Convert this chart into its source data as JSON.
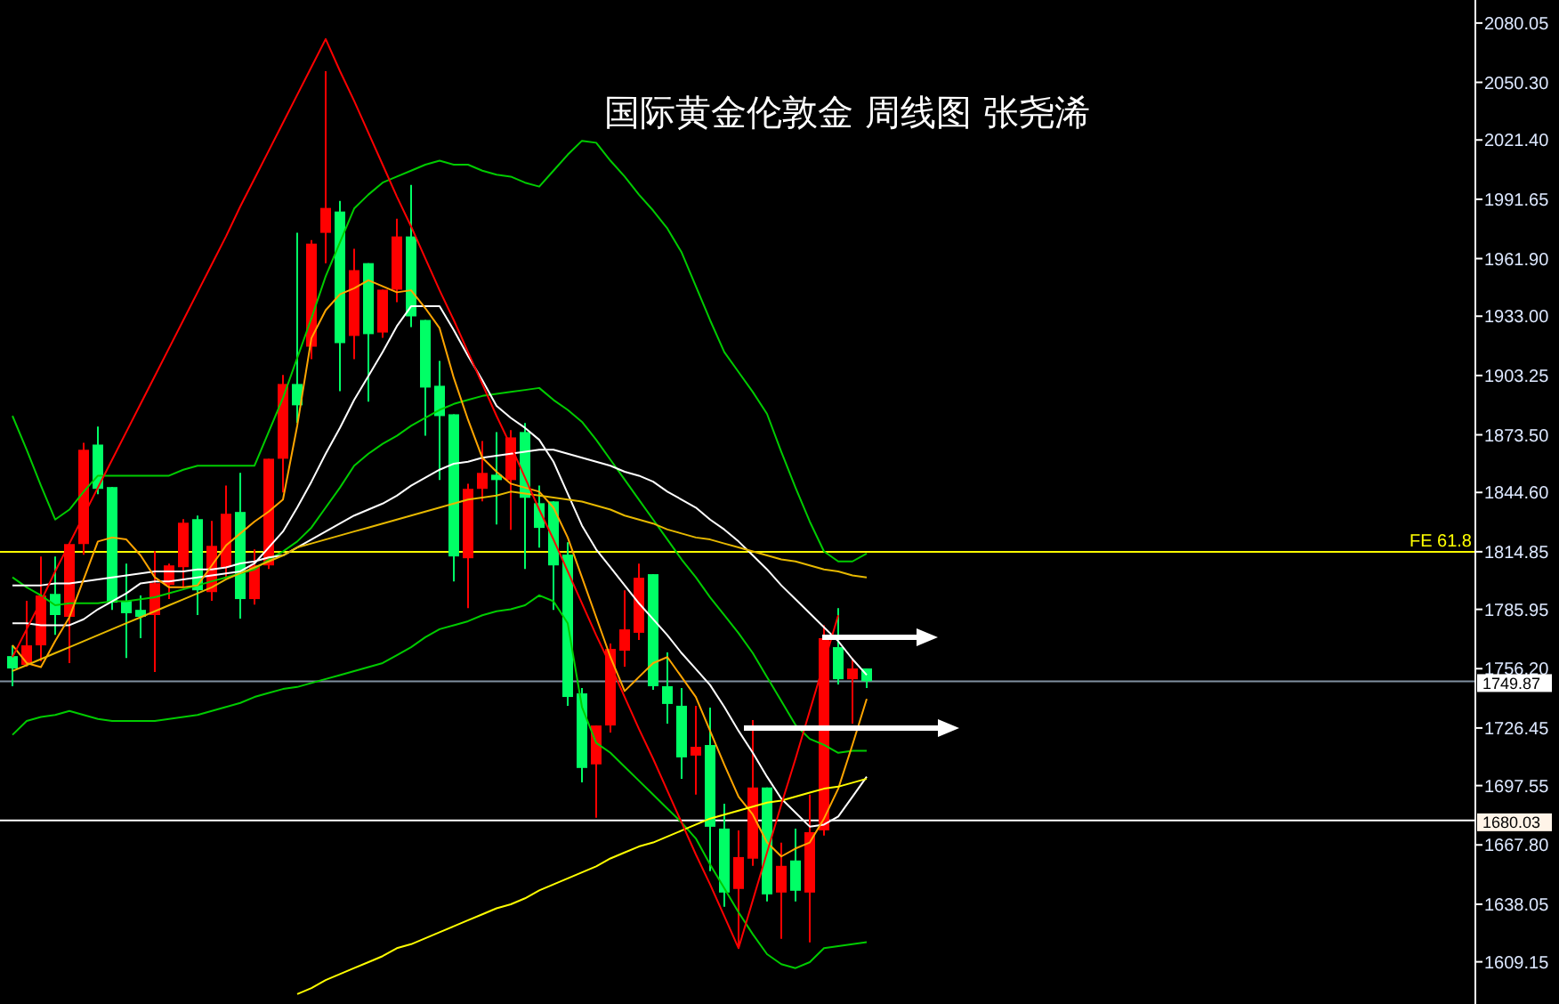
{
  "chart_data": {
    "type": "candlestick",
    "title": "国际黄金伦敦金  周线图  张尧浠",
    "categories": [
      null,
      null,
      null,
      null,
      null,
      null,
      null,
      null,
      null,
      null,
      null,
      null,
      null,
      null,
      null,
      null,
      null,
      null,
      null,
      null,
      null,
      null,
      null,
      null,
      null,
      null,
      null,
      null,
      null,
      null,
      null,
      null,
      null,
      null,
      null,
      null,
      null,
      null,
      null,
      null,
      null,
      null,
      null,
      null,
      null,
      null,
      null,
      null,
      null,
      null,
      null,
      null,
      null,
      null,
      null,
      null,
      null,
      null,
      null,
      null,
      null
    ],
    "ohlc": [
      [
        1762.5,
        1767.9,
        1747.4,
        1756.3
      ],
      [
        1758.1,
        1790.2,
        1757.2,
        1767.9
      ],
      [
        1767.9,
        1812.5,
        1759.9,
        1792.9
      ],
      [
        1793.7,
        1812.5,
        1773.2,
        1783.1
      ],
      [
        1782.2,
        1818.7,
        1759.0,
        1818.7
      ],
      [
        1818.7,
        1869.5,
        1813.4,
        1866.0
      ],
      [
        1868.6,
        1877.6,
        1843.7,
        1846.4
      ],
      [
        1847.3,
        1847.3,
        1785.7,
        1789.3
      ],
      [
        1790.2,
        1808.9,
        1761.6,
        1784.0
      ],
      [
        1785.7,
        1792.9,
        1771.5,
        1782.2
      ],
      [
        1783.1,
        1815.1,
        1754.5,
        1799.1
      ],
      [
        1798.2,
        1808.9,
        1791.1,
        1808.0
      ],
      [
        1807.1,
        1831.2,
        1797.3,
        1829.4
      ],
      [
        1831.2,
        1833.0,
        1783.1,
        1795.5
      ],
      [
        1794.6,
        1830.3,
        1790.2,
        1817.8
      ],
      [
        1807.1,
        1848.1,
        1801.8,
        1833.9
      ],
      [
        1834.8,
        1854.4,
        1781.3,
        1791.1
      ],
      [
        1791.1,
        1816.0,
        1788.4,
        1808.0
      ],
      [
        1808.0,
        1861.5,
        1806.2,
        1861.5
      ],
      [
        1861.5,
        1903.5,
        1844.6,
        1899.0
      ],
      [
        1899.0,
        1974.8,
        1879.4,
        1888.3
      ],
      [
        1917.7,
        1971.2,
        1911.5,
        1969.4
      ],
      [
        1974.8,
        2055.9,
        1959.6,
        1987.3
      ],
      [
        1985.5,
        1990.8,
        1895.4,
        1919.5
      ],
      [
        1923.1,
        1966.8,
        1911.5,
        1956.1
      ],
      [
        1959.6,
        1959.6,
        1890.1,
        1924.0
      ],
      [
        1924.8,
        1946.3,
        1922.2,
        1946.3
      ],
      [
        1946.3,
        1981.9,
        1940.0,
        1973.0
      ],
      [
        1973.0,
        1998.9,
        1927.5,
        1932.9
      ],
      [
        1931.1,
        1931.1,
        1873.1,
        1897.2
      ],
      [
        1898.1,
        1910.6,
        1850.8,
        1882.9
      ],
      [
        1883.8,
        1883.8,
        1800.0,
        1812.5
      ],
      [
        1811.6,
        1849.0,
        1786.6,
        1846.4
      ],
      [
        1846.4,
        1870.4,
        1840.1,
        1854.4
      ],
      [
        1853.5,
        1874.9,
        1828.5,
        1850.8
      ],
      [
        1850.8,
        1875.8,
        1825.9,
        1872.2
      ],
      [
        1874.9,
        1879.4,
        1806.2,
        1841.9
      ],
      [
        1839.2,
        1848.1,
        1816.9,
        1826.8
      ],
      [
        1840.1,
        1840.1,
        1785.7,
        1808.0
      ],
      [
        1813.4,
        1819.6,
        1737.6,
        1742.0
      ],
      [
        1743.8,
        1746.5,
        1699.2,
        1706.4
      ],
      [
        1708.2,
        1727.7,
        1681.4,
        1727.7
      ],
      [
        1727.7,
        1768.8,
        1724.2,
        1766.1
      ],
      [
        1765.2,
        1795.5,
        1757.2,
        1775.9
      ],
      [
        1774.2,
        1808.9,
        1770.6,
        1801.8
      ],
      [
        1803.6,
        1803.6,
        1745.6,
        1747.4
      ],
      [
        1747.4,
        1764.3,
        1728.6,
        1738.5
      ],
      [
        1737.6,
        1746.5,
        1701.0,
        1711.7
      ],
      [
        1712.6,
        1737.6,
        1693.0,
        1717.0
      ],
      [
        1717.9,
        1736.7,
        1654.6,
        1676.9
      ],
      [
        1676.0,
        1688.5,
        1636.8,
        1643.9
      ],
      [
        1645.7,
        1675.1,
        1616.3,
        1661.7
      ],
      [
        1660.9,
        1730.4,
        1657.3,
        1696.6
      ],
      [
        1696.6,
        1696.6,
        1639.5,
        1643.0
      ],
      [
        1643.9,
        1668.9,
        1620.7,
        1657.3
      ],
      [
        1660.0,
        1676.0,
        1639.5,
        1644.8
      ],
      [
        1643.9,
        1693.0,
        1618.9,
        1674.2
      ],
      [
        1675.1,
        1778.0,
        1672.5,
        1771.5
      ],
      [
        1767.0,
        1786.6,
        1748.3,
        1750.9
      ],
      [
        1750.9,
        1761.6,
        1728.6,
        1756.3
      ],
      [
        1756.3,
        1756.3,
        1746.5,
        1749.9
      ]
    ],
    "colors": [
      "#00ff66",
      "#ff0000",
      "#ff0000",
      "#00ff66",
      "#ff0000",
      "#ff0000",
      "#00ff66",
      "#00ff66",
      "#00ff66",
      "#00ff66",
      "#ff0000",
      "#ff0000",
      "#ff0000",
      "#00ff66",
      "#ff0000",
      "#ff0000",
      "#00ff66",
      "#ff0000",
      "#ff0000",
      "#ff0000",
      "#00ff66",
      "#ff0000",
      "#ff0000",
      "#00ff66",
      "#ff0000",
      "#00ff66",
      "#ff0000",
      "#ff0000",
      "#00ff66",
      "#00ff66",
      "#00ff66",
      "#00ff66",
      "#ff0000",
      "#ff0000",
      "#00ff66",
      "#ff0000",
      "#00ff66",
      "#00ff66",
      "#00ff66",
      "#00ff66",
      "#00ff66",
      "#ff0000",
      "#ff0000",
      "#ff0000",
      "#ff0000",
      "#00ff66",
      "#00ff66",
      "#00ff66",
      "#ff0000",
      "#00ff66",
      "#00ff66",
      "#ff0000",
      "#ff0000",
      "#00ff66",
      "#ff0000",
      "#00ff66",
      "#ff0000",
      "#ff0000",
      "#00ff66",
      "#ff0000",
      "#00ff66"
    ],
    "series": [
      {
        "type": "line",
        "color": "#00cc00",
        "values": [
          1883,
          1866,
          1848,
          1831,
          1836,
          1845,
          1853,
          1853,
          1853,
          1853,
          1853,
          1853,
          1856,
          1858,
          1858,
          1858,
          1858,
          1858,
          1875,
          1892,
          1912,
          1932,
          1953,
          1970,
          1987,
          1994,
          2000,
          2003,
          2006,
          2009,
          2011,
          2009,
          2009,
          2006,
          2004,
          2003,
          2000,
          1998,
          2006,
          2014,
          2021,
          2020,
          2011,
          2003,
          1994,
          1986,
          1977,
          1965,
          1948,
          1931,
          1915,
          1905,
          1895,
          1884,
          1865,
          1847,
          1830,
          1815,
          1810,
          1810,
          1814
        ]
      },
      {
        "type": "line",
        "color": "#00cc00",
        "values": [
          1802,
          1797,
          1793,
          1788,
          1789,
          1789,
          1789,
          1790,
          1790,
          1791,
          1792,
          1794,
          1796,
          1798,
          1800,
          1802,
          1804,
          1806,
          1811,
          1815,
          1820,
          1827,
          1837,
          1847,
          1858,
          1864,
          1869,
          1873,
          1878,
          1882,
          1886,
          1889,
          1891,
          1893,
          1894,
          1895,
          1896,
          1897,
          1891,
          1886,
          1880,
          1871,
          1861,
          1851,
          1841,
          1831,
          1821,
          1811,
          1802,
          1792,
          1783,
          1774,
          1764,
          1752,
          1740,
          1728,
          1721,
          1718,
          1714,
          1715,
          1715
        ]
      },
      {
        "type": "line",
        "color": "#00cc00",
        "values": [
          1723,
          1730,
          1732,
          1733,
          1735,
          1733,
          1731,
          1730,
          1730,
          1730,
          1730,
          1731,
          1732,
          1733,
          1735,
          1737,
          1739,
          1742,
          1744,
          1746,
          1747,
          1749,
          1751,
          1753,
          1755,
          1757,
          1759,
          1763,
          1767,
          1772,
          1776,
          1778,
          1780,
          1783,
          1785,
          1786,
          1788,
          1793,
          1790,
          1779,
          1737,
          1719,
          1714,
          1707,
          1700,
          1693,
          1686,
          1679,
          1671,
          1658,
          1646,
          1634,
          1623,
          1613,
          1608,
          1606,
          1609,
          1616,
          1617,
          1618,
          1619
        ]
      },
      {
        "type": "line",
        "color": "#ffffff",
        "values": [
          1779,
          1779,
          1778,
          1778,
          1778,
          1781,
          1786,
          1790,
          1794,
          1799,
          1800,
          1800,
          1801,
          1802,
          1803,
          1804,
          1805,
          1809,
          1817,
          1825,
          1837,
          1850,
          1864,
          1877,
          1891,
          1903,
          1915,
          1928,
          1938,
          1938,
          1938,
          1926,
          1913,
          1901,
          1888,
          1882,
          1877,
          1871,
          1860,
          1844,
          1828,
          1816,
          1807,
          1798,
          1789,
          1781,
          1773,
          1764,
          1756,
          1748,
          1737,
          1725,
          1714,
          1702,
          1691,
          1684,
          1677,
          1678,
          1682,
          1692,
          1702
        ]
      },
      {
        "type": "line",
        "color": "#ffffff",
        "values": [
          1798,
          1798,
          1798,
          1799,
          1799,
          1800,
          1801,
          1802,
          1803,
          1804,
          1805,
          1805,
          1805,
          1806,
          1806,
          1807,
          1809,
          1810,
          1812,
          1813,
          1817,
          1821,
          1825,
          1829,
          1833,
          1836,
          1839,
          1843,
          1848,
          1852,
          1856,
          1859,
          1860,
          1862,
          1863,
          1864,
          1865,
          1866,
          1866,
          1864,
          1862,
          1860,
          1858,
          1855,
          1853,
          1850,
          1845,
          1841,
          1837,
          1831,
          1826,
          1820,
          1813,
          1806,
          1798,
          1791,
          1784,
          1777,
          1770,
          1761,
          1753
        ]
      },
      {
        "type": "line",
        "color": "#ffa500",
        "values": [
          1768,
          1759,
          1757,
          1770,
          1782,
          1801,
          1820,
          1822,
          1821,
          1813,
          1802,
          1797,
          1797,
          1798,
          1808,
          1818,
          1824,
          1830,
          1835,
          1841,
          1878,
          1922,
          1936,
          1944,
          1947,
          1951,
          1948,
          1945,
          1946,
          1937,
          1927,
          1902,
          1881,
          1862,
          1855,
          1849,
          1847,
          1845,
          1837,
          1822,
          1802,
          1782,
          1762,
          1745,
          1752,
          1759,
          1762,
          1752,
          1742,
          1725,
          1708,
          1692,
          1683,
          1669,
          1662,
          1666,
          1669,
          1681,
          1696,
          1718,
          1741
        ]
      },
      {
        "type": "line",
        "color": "#e6b800",
        "values": [
          1755,
          1758,
          1761,
          1764,
          1767,
          1770,
          1773,
          1776,
          1779,
          1782,
          1785,
          1788,
          1791,
          1794,
          1797,
          1801,
          1804,
          1807,
          1810,
          1813,
          1817,
          1819,
          1821,
          1823,
          1825,
          1827,
          1829,
          1831,
          1833,
          1835,
          1837,
          1839,
          1841,
          1842,
          1843,
          1845,
          1844,
          1843,
          1842,
          1841,
          1840,
          1838,
          1836,
          1833,
          1831,
          1829,
          1826,
          1824,
          1822,
          1821,
          1819,
          1817,
          1815,
          1813,
          1811,
          1810,
          1808,
          1806,
          1805,
          1803,
          1802
        ]
      },
      {
        "type": "line",
        "color": "#ffff00",
        "values": [
          null,
          null,
          null,
          null,
          null,
          null,
          null,
          null,
          null,
          null,
          null,
          null,
          null,
          null,
          null,
          null,
          null,
          null,
          null,
          null,
          1593,
          1596,
          1600,
          1603,
          1606,
          1609,
          1612,
          1616,
          1618,
          1621,
          1624,
          1627,
          1630,
          1633,
          1636,
          1638,
          1641,
          1645,
          1648,
          1651,
          1654,
          1657,
          1661,
          1664,
          1667,
          1669,
          1672,
          1675,
          1678,
          1681,
          1683,
          1685,
          1687,
          1689,
          1690,
          1692,
          1694,
          1696,
          1697,
          1699,
          1701
        ]
      },
      {
        "type": "line",
        "color": "#ff0000",
        "values": [
          1762,
          1776,
          1790,
          1805,
          1819,
          1833,
          1847,
          1861,
          1875,
          1889,
          1903,
          1917,
          1931,
          1945,
          1959,
          1973,
          1988,
          2002,
          2016,
          2030,
          2044,
          2058,
          2072,
          2056,
          2041,
          2025,
          2009,
          1993,
          1978,
          1962,
          1946,
          1931,
          1915,
          1899,
          1883,
          1868,
          1852,
          1836,
          1821,
          1805,
          1789,
          1773,
          1758,
          1742,
          1726,
          1711,
          1695,
          1679,
          1663,
          1648,
          1632,
          1616,
          1640,
          1664,
          1688,
          1711,
          1735,
          1759,
          1783,
          null,
          null
        ]
      }
    ],
    "ref_lines": [
      {
        "axis": "y",
        "value": 1814.85,
        "label": "FE 61.8",
        "color": "#ffff00"
      },
      {
        "axis": "y",
        "value": 1749.87,
        "label": "1749.87",
        "color": "#8090a0"
      },
      {
        "axis": "y",
        "value": 1680.03,
        "label": "1680.03",
        "color": "#ffffff"
      }
    ],
    "ylim": [
      1588,
      2091.6
    ],
    "yticks": [
      2080.05,
      {
        "value": 2050.3,
        "label": "2050.30"
      },
      {
        "value": 2021.4,
        "label": "2021.40"
      },
      1991.65,
      {
        "value": 1961.9,
        "label": "1961.90"
      },
      {
        "value": 1933,
        "label": "1933.00"
      },
      1903.25,
      {
        "value": 1873.5,
        "label": "1873.50"
      },
      {
        "value": 1844.6,
        "label": "1844.60"
      },
      1814.85,
      1785.95,
      {
        "value": 1756.2,
        "label": "1756.20"
      },
      1726.45,
      1697.55,
      {
        "value": 1667.8,
        "label": "1667.80"
      },
      1638.05,
      1609.15
    ],
    "tick_labels": "y",
    "grid": false
  }
}
